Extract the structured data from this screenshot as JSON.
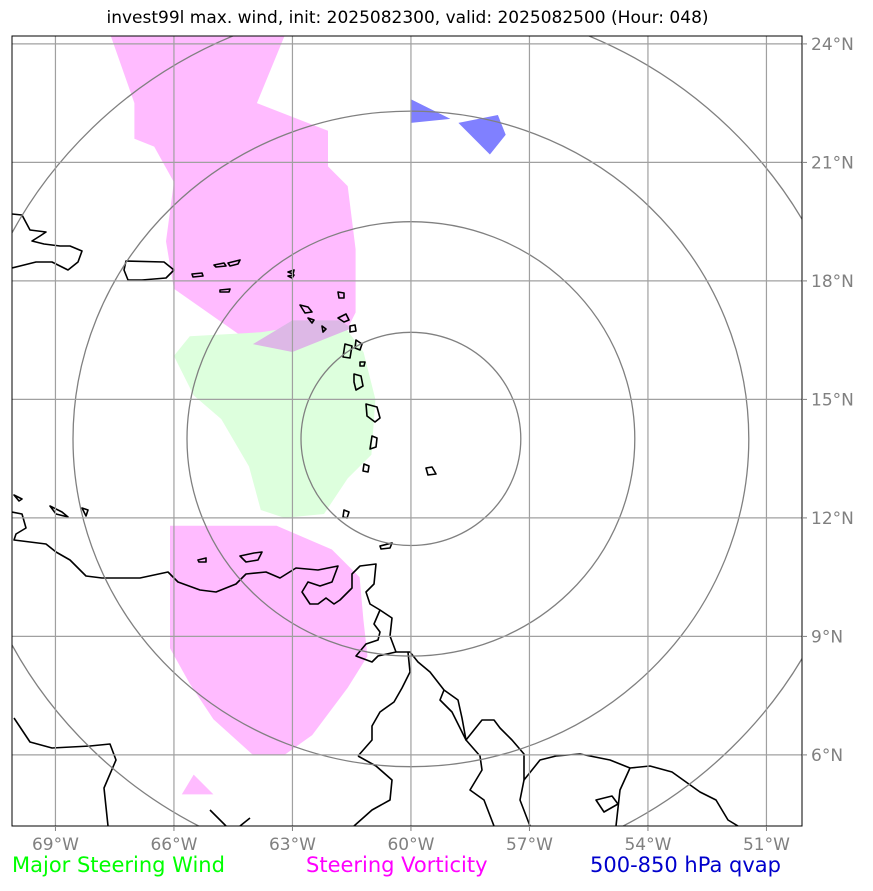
{
  "title": "invest99l max. wind, init: 2025082300, valid: 2025082500 (Hour: 048)",
  "map_extent": {
    "lon": [
      -70.1,
      -50.1
    ],
    "lat": [
      4.2,
      24.2
    ]
  },
  "lon_ticks": [
    {
      "value": -69,
      "label": "69°W"
    },
    {
      "value": -66,
      "label": "66°W"
    },
    {
      "value": -63,
      "label": "63°W"
    },
    {
      "value": -60,
      "label": "60°W"
    },
    {
      "value": -57,
      "label": "57°W"
    },
    {
      "value": -54,
      "label": "54°W"
    },
    {
      "value": -51,
      "label": "51°W"
    }
  ],
  "lat_ticks": [
    {
      "value": 6,
      "label": "6°N"
    },
    {
      "value": 9,
      "label": "9°N"
    },
    {
      "value": 12,
      "label": "12°N"
    },
    {
      "value": 15,
      "label": "15°N"
    },
    {
      "value": 18,
      "label": "18°N"
    },
    {
      "value": 21,
      "label": "21°N"
    },
    {
      "value": 24,
      "label": "24°N"
    }
  ],
  "range_rings": {
    "center": [
      -60,
      14
    ],
    "radii_deg_lat": [
      2.7,
      5.5,
      8.3,
      11.1
    ]
  },
  "colors": {
    "major_steering_wind": "#00ff00",
    "steering_vorticity": "#ff00ff",
    "qvap": "#0000cc",
    "vorticity_fill": "#ffbbff",
    "wind_fill": "#ddffdd",
    "qvap_fill": "#8080ff",
    "overlap_fill": "#ddb8e6",
    "grid": "#a0a0a0",
    "rings": "#808080",
    "coast": "#000000"
  },
  "fields": {
    "steering_vorticity": [
      [
        [
          -67.6,
          24.2
        ],
        [
          -63.2,
          24.2
        ],
        [
          -63.9,
          22.5
        ],
        [
          -62.1,
          21.8
        ],
        [
          -62.1,
          20.9
        ],
        [
          -61.6,
          20.4
        ],
        [
          -61.4,
          18.8
        ],
        [
          -61.4,
          17.2
        ],
        [
          -61.6,
          16.8
        ],
        [
          -63.0,
          16.2
        ],
        [
          -64.0,
          16.4
        ],
        [
          -66.0,
          17.8
        ],
        [
          -66.2,
          19.0
        ],
        [
          -66.0,
          20.5
        ],
        [
          -66.5,
          21.4
        ],
        [
          -67.0,
          21.6
        ],
        [
          -67.0,
          22.5
        ],
        [
          -67.6,
          24.2
        ]
      ],
      [
        [
          -66.1,
          11.8
        ],
        [
          -63.4,
          11.8
        ],
        [
          -62.0,
          11.2
        ],
        [
          -61.3,
          10.5
        ],
        [
          -61.2,
          9.4
        ],
        [
          -61.1,
          8.5
        ],
        [
          -61.6,
          7.7
        ],
        [
          -62.5,
          6.5
        ],
        [
          -63.2,
          6.0
        ],
        [
          -64.0,
          6.0
        ],
        [
          -65.0,
          6.9
        ],
        [
          -65.6,
          7.8
        ],
        [
          -66.1,
          8.7
        ],
        [
          -66.1,
          11.8
        ]
      ],
      [
        [
          -65.8,
          5.0
        ],
        [
          -65.0,
          5.0
        ],
        [
          -65.5,
          5.5
        ],
        [
          -65.8,
          5.0
        ]
      ]
    ],
    "major_steering_wind": [
      [
        [
          -63.8,
          16.7
        ],
        [
          -61.8,
          17.0
        ],
        [
          -61.2,
          16.2
        ],
        [
          -60.9,
          15.0
        ],
        [
          -61.0,
          13.6
        ],
        [
          -61.6,
          13.0
        ],
        [
          -62.2,
          12.1
        ],
        [
          -63.2,
          12.0
        ],
        [
          -63.8,
          12.2
        ],
        [
          -64.1,
          13.3
        ],
        [
          -64.8,
          14.5
        ],
        [
          -65.5,
          15.1
        ],
        [
          -66.0,
          16.1
        ],
        [
          -65.6,
          16.6
        ],
        [
          -63.8,
          16.7
        ]
      ]
    ],
    "steering_vorticity_overlap": [
      [
        [
          -64.0,
          16.4
        ],
        [
          -63.0,
          17.0
        ],
        [
          -61.8,
          17.0
        ],
        [
          -61.5,
          16.8
        ],
        [
          -63.0,
          16.2
        ],
        [
          -64.0,
          16.4
        ]
      ]
    ],
    "qvap": [
      [
        [
          -60.0,
          22.6
        ],
        [
          -59.0,
          22.1
        ],
        [
          -60.0,
          22.0
        ],
        [
          -60.0,
          22.6
        ]
      ],
      [
        [
          -58.8,
          22.0
        ],
        [
          -57.8,
          22.2
        ],
        [
          -57.6,
          21.7
        ],
        [
          -58.0,
          21.2
        ],
        [
          -58.8,
          22.0
        ]
      ]
    ]
  },
  "legend": {
    "major_steering_wind": "Major Steering Wind",
    "steering_vorticity": "Steering Vorticity",
    "qvap": "500-850 hPa qvap"
  }
}
